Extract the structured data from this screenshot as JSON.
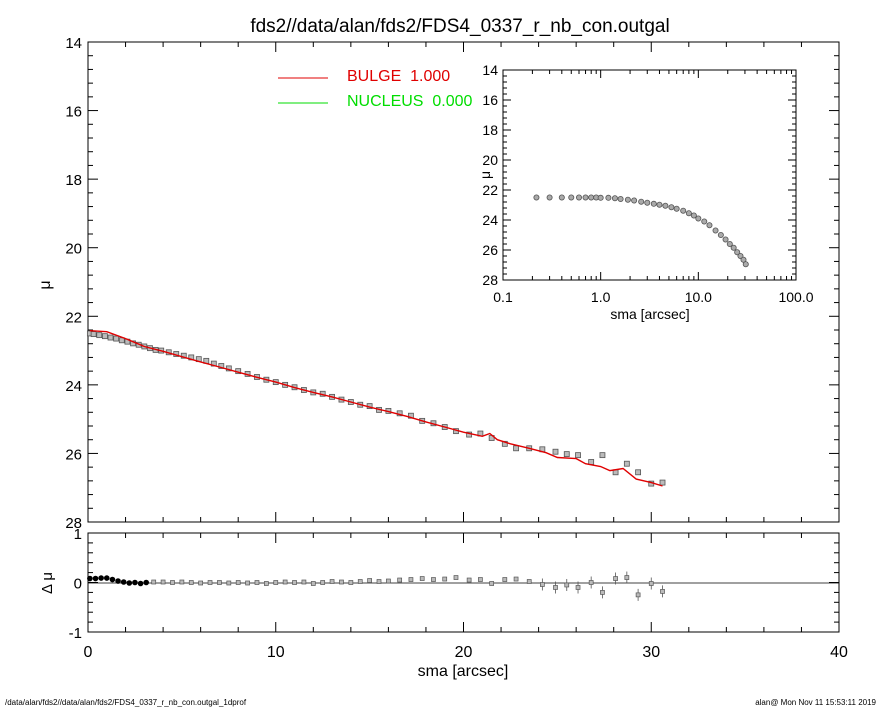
{
  "title": "fds2//data/alan/fds2/FDS4_0337_r_nb_con.outgal",
  "footer": {
    "left": "/data/alan/fds2//data/alan/fds2/FDS4_0337_r_nb_con.outgal_1dprof",
    "right": "alan@  Mon Nov 11 15:53:11 2019"
  },
  "colors": {
    "bulge": "#e00000",
    "nucleus": "#00dd00",
    "data": "#555555",
    "axis": "#000000"
  },
  "chart_data": [
    {
      "id": "main",
      "type": "scatter",
      "xlabel": "sma [arcsec]",
      "ylabel": "μ",
      "xlim": [
        0,
        40
      ],
      "ylim": [
        28,
        14
      ],
      "x_ticks": [
        "0",
        "10",
        "20",
        "30",
        "40"
      ],
      "y_ticks": [
        "14",
        "16",
        "18",
        "20",
        "22",
        "24",
        "26",
        "28"
      ],
      "legend": [
        {
          "label": "BULGE  1.000",
          "color": "#e00000"
        },
        {
          "label": "NUCLEUS  0.000",
          "color": "#00dd00"
        }
      ],
      "series": [
        {
          "name": "BULGE  1.000",
          "kind": "line",
          "points": [
            [
              0.1,
              22.42
            ],
            [
              1.0,
              22.45
            ],
            [
              2.0,
              22.65
            ],
            [
              3.0,
              22.88
            ],
            [
              4.0,
              23.02
            ],
            [
              5.0,
              23.18
            ],
            [
              6.0,
              23.33
            ],
            [
              7.0,
              23.48
            ],
            [
              8.0,
              23.63
            ],
            [
              9.0,
              23.78
            ],
            [
              10.0,
              23.92
            ],
            [
              11.0,
              24.08
            ],
            [
              12.0,
              24.22
            ],
            [
              13.0,
              24.35
            ],
            [
              14.0,
              24.5
            ],
            [
              15.0,
              24.65
            ],
            [
              16.0,
              24.78
            ],
            [
              17.0,
              24.92
            ],
            [
              18.0,
              25.08
            ],
            [
              19.0,
              25.23
            ],
            [
              20.0,
              25.38
            ],
            [
              21.0,
              25.5
            ],
            [
              21.4,
              25.42
            ],
            [
              21.8,
              25.6
            ],
            [
              22.5,
              25.72
            ],
            [
              23.5,
              25.85
            ],
            [
              24.4,
              25.98
            ],
            [
              25.0,
              26.12
            ],
            [
              26.0,
              26.15
            ],
            [
              26.5,
              26.3
            ],
            [
              27.3,
              26.38
            ],
            [
              27.8,
              26.5
            ],
            [
              28.5,
              26.44
            ],
            [
              29.2,
              26.75
            ],
            [
              30.0,
              26.85
            ],
            [
              30.6,
              26.95
            ]
          ]
        },
        {
          "name": "data",
          "kind": "points",
          "points": [
            [
              0.1,
              22.5
            ],
            [
              0.3,
              22.52
            ],
            [
              0.6,
              22.55
            ],
            [
              0.9,
              22.58
            ],
            [
              1.2,
              22.62
            ],
            [
              1.5,
              22.65
            ],
            [
              1.8,
              22.7
            ],
            [
              2.1,
              22.74
            ],
            [
              2.4,
              22.79
            ],
            [
              2.7,
              22.83
            ],
            [
              3.0,
              22.88
            ],
            [
              3.3,
              22.93
            ],
            [
              3.6,
              22.98
            ],
            [
              3.9,
              23.0
            ],
            [
              4.3,
              23.05
            ],
            [
              4.7,
              23.1
            ],
            [
              5.1,
              23.15
            ],
            [
              5.5,
              23.2
            ],
            [
              5.9,
              23.25
            ],
            [
              6.3,
              23.3
            ],
            [
              6.7,
              23.38
            ],
            [
              7.1,
              23.45
            ],
            [
              7.5,
              23.52
            ],
            [
              8.0,
              23.6
            ],
            [
              8.5,
              23.68
            ],
            [
              9.0,
              23.77
            ],
            [
              9.5,
              23.85
            ],
            [
              10.0,
              23.92
            ],
            [
              10.5,
              24.0
            ],
            [
              11.0,
              24.07
            ],
            [
              11.5,
              24.15
            ],
            [
              12.0,
              24.22
            ],
            [
              12.5,
              24.26
            ],
            [
              13.0,
              24.35
            ],
            [
              13.5,
              24.43
            ],
            [
              14.0,
              24.5
            ],
            [
              14.5,
              24.58
            ],
            [
              15.0,
              24.62
            ],
            [
              15.5,
              24.73
            ],
            [
              16.0,
              24.76
            ],
            [
              16.6,
              24.83
            ],
            [
              17.2,
              24.9
            ],
            [
              17.8,
              25.05
            ],
            [
              18.4,
              25.12
            ],
            [
              19.0,
              25.23
            ],
            [
              19.6,
              25.35
            ],
            [
              20.3,
              25.45
            ],
            [
              20.9,
              25.42
            ],
            [
              21.5,
              25.55
            ],
            [
              22.2,
              25.72
            ],
            [
              22.8,
              25.85
            ],
            [
              23.5,
              25.85
            ],
            [
              24.2,
              25.88
            ],
            [
              24.9,
              25.95
            ],
            [
              25.5,
              26.02
            ],
            [
              26.1,
              26.05
            ],
            [
              26.8,
              26.25
            ],
            [
              27.4,
              26.05
            ],
            [
              28.1,
              26.55
            ],
            [
              28.7,
              26.3
            ],
            [
              29.3,
              26.55
            ],
            [
              30.0,
              26.88
            ],
            [
              30.6,
              26.85
            ]
          ]
        }
      ],
      "inset": {
        "type": "scatter",
        "xscale": "log",
        "xlabel": "sma [arcsec]",
        "ylabel": "μ",
        "xlim": [
          0.1,
          100.0
        ],
        "ylim": [
          28,
          14
        ],
        "x_ticks": [
          "0.1",
          "1.0",
          "10.0",
          "100.0"
        ],
        "y_ticks": [
          "14",
          "16",
          "18",
          "20",
          "22",
          "24",
          "26",
          "28"
        ],
        "points": [
          [
            0.22,
            22.5
          ],
          [
            0.3,
            22.5
          ],
          [
            0.4,
            22.5
          ],
          [
            0.5,
            22.5
          ],
          [
            0.6,
            22.5
          ],
          [
            0.7,
            22.5
          ],
          [
            0.8,
            22.5
          ],
          [
            0.9,
            22.5
          ],
          [
            1.0,
            22.52
          ],
          [
            1.2,
            22.52
          ],
          [
            1.4,
            22.55
          ],
          [
            1.6,
            22.6
          ],
          [
            1.9,
            22.65
          ],
          [
            2.2,
            22.7
          ],
          [
            2.6,
            22.78
          ],
          [
            3.0,
            22.85
          ],
          [
            3.5,
            22.92
          ],
          [
            4.0,
            22.98
          ],
          [
            4.6,
            23.05
          ],
          [
            5.3,
            23.15
          ],
          [
            6.0,
            23.25
          ],
          [
            7.0,
            23.38
          ],
          [
            8.0,
            23.55
          ],
          [
            9.0,
            23.7
          ],
          [
            10.0,
            23.9
          ],
          [
            11.5,
            24.1
          ],
          [
            13.0,
            24.35
          ],
          [
            15.0,
            24.7
          ],
          [
            17.0,
            25.0
          ],
          [
            19.0,
            25.3
          ],
          [
            21.0,
            25.6
          ],
          [
            23.0,
            25.85
          ],
          [
            25.0,
            26.15
          ],
          [
            27.0,
            26.4
          ],
          [
            29.0,
            26.65
          ],
          [
            30.6,
            26.95
          ]
        ]
      }
    },
    {
      "id": "residual",
      "type": "scatter",
      "xlabel": "sma [arcsec]",
      "ylabel": "Δ μ",
      "xlim": [
        0,
        40
      ],
      "ylim": [
        -1,
        1
      ],
      "x_ticks": [
        "0",
        "10",
        "20",
        "30",
        "40"
      ],
      "y_ticks": [
        "1",
        "0",
        "-1"
      ],
      "points": [
        [
          0.1,
          0.08
        ],
        [
          0.4,
          0.08
        ],
        [
          0.7,
          0.09
        ],
        [
          1.0,
          0.09
        ],
        [
          1.3,
          0.06
        ],
        [
          1.6,
          0.03
        ],
        [
          1.9,
          0.01
        ],
        [
          2.2,
          -0.01
        ],
        [
          2.5,
          0.0
        ],
        [
          2.8,
          -0.02
        ],
        [
          3.1,
          0.0
        ],
        [
          3.5,
          0.01
        ],
        [
          4.0,
          0.01
        ],
        [
          4.5,
          0.0
        ],
        [
          5.0,
          0.01
        ],
        [
          5.5,
          0.0
        ],
        [
          6.0,
          -0.01
        ],
        [
          6.5,
          0.0
        ],
        [
          7.0,
          0.0
        ],
        [
          7.5,
          -0.01
        ],
        [
          8.0,
          0.0
        ],
        [
          8.5,
          -0.01
        ],
        [
          9.0,
          0.0
        ],
        [
          9.5,
          -0.02
        ],
        [
          10.0,
          0.0
        ],
        [
          10.5,
          0.01
        ],
        [
          11.0,
          0.0
        ],
        [
          11.5,
          0.01
        ],
        [
          12.0,
          -0.02
        ],
        [
          12.5,
          0.0
        ],
        [
          13.0,
          0.02
        ],
        [
          13.5,
          0.01
        ],
        [
          14.0,
          0.0
        ],
        [
          14.5,
          0.02
        ],
        [
          15.0,
          0.04
        ],
        [
          15.5,
          0.02
        ],
        [
          16.0,
          0.03
        ],
        [
          16.6,
          0.05
        ],
        [
          17.2,
          0.06
        ],
        [
          17.8,
          0.08
        ],
        [
          18.4,
          0.06
        ],
        [
          19.0,
          0.07
        ],
        [
          19.6,
          0.1
        ],
        [
          20.3,
          0.05
        ],
        [
          20.9,
          0.06
        ],
        [
          21.5,
          -0.02
        ],
        [
          22.2,
          0.06
        ],
        [
          22.8,
          0.07
        ],
        [
          23.5,
          0.02
        ],
        [
          24.2,
          -0.04
        ],
        [
          24.9,
          -0.1
        ],
        [
          25.5,
          -0.05
        ],
        [
          26.1,
          -0.1
        ],
        [
          26.8,
          0.0
        ],
        [
          27.4,
          -0.2
        ],
        [
          28.1,
          0.08
        ],
        [
          28.7,
          0.1
        ],
        [
          29.3,
          -0.25
        ],
        [
          30.0,
          -0.02
        ],
        [
          30.6,
          -0.18
        ]
      ]
    }
  ]
}
